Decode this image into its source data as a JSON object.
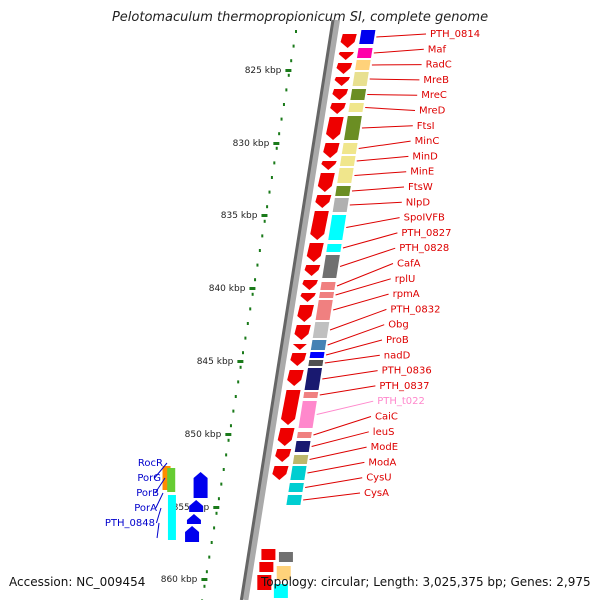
{
  "title": "Pelotomaculum thermopropionicum SI, complete genome",
  "accession": "Accession: NC_009454",
  "topology": "Topology: circular; Length: 3,025,375 bp; Genes: 2,975",
  "scale_labels": [
    "825 kbp",
    "830 kbp",
    "835 kbp",
    "840 kbp",
    "845 kbp",
    "850 kbp",
    "855 kbp",
    "860 kbp"
  ],
  "genes_red": [
    {
      "label": "PTH_0814",
      "color": "#0000ee"
    },
    {
      "label": "Maf",
      "color": "#ff00aa"
    },
    {
      "label": "RadC",
      "color": "#ffd27a"
    },
    {
      "label": "MreB",
      "color": "#e8e090"
    },
    {
      "label": "MreC",
      "color": "#6b8e23"
    },
    {
      "label": "MreD",
      "color": "#f0e68c"
    },
    {
      "label": "FtsI",
      "color": "#6b8e23"
    },
    {
      "label": "MinC",
      "color": "#f0e68c"
    },
    {
      "label": "MinD",
      "color": "#f0e68c"
    },
    {
      "label": "MinE",
      "color": "#f0e68c"
    },
    {
      "label": "FtsW",
      "color": "#6b8e23"
    },
    {
      "label": "NlpD",
      "color": "#b0b0b0"
    },
    {
      "label": "SpoIVFB",
      "color": "#00ffff"
    },
    {
      "label": "PTH_0827",
      "color": "#00ffff"
    },
    {
      "label": "PTH_0828",
      "color": "#707070"
    },
    {
      "label": "CafA",
      "color": "#f08080"
    },
    {
      "label": "rplU",
      "color": "#f08080"
    },
    {
      "label": "rpmA",
      "color": "#f08080"
    },
    {
      "label": "PTH_0832",
      "color": "#c0c0c0"
    },
    {
      "label": "Obg",
      "color": "#4682b4"
    },
    {
      "label": "ProB",
      "color": "#0000ff"
    },
    {
      "label": "nadD",
      "color": "#505050"
    },
    {
      "label": "PTH_0836",
      "color": "#191970"
    },
    {
      "label": "PTH_0837",
      "color": "#f08080"
    },
    {
      "label": "PTH_t022",
      "color": "#ff88cc"
    },
    {
      "label": "CaiC",
      "color": "#f08080"
    },
    {
      "label": "leuS",
      "color": "#191970"
    },
    {
      "label": "ModE",
      "color": "#bdb76b"
    },
    {
      "label": "ModA",
      "color": "#00ced1"
    },
    {
      "label": "CysU",
      "color": "#00ced1"
    },
    {
      "label": "CysA",
      "color": "#00ced1"
    }
  ],
  "genes_blue": [
    {
      "label": "RocR",
      "color": "#ff8c00"
    },
    {
      "label": "PorG",
      "color": "#00ffff"
    },
    {
      "label": "PorB",
      "color": "#00ffff"
    },
    {
      "label": "PorA",
      "color": "#00ffff"
    },
    {
      "label": "PTH_0848",
      "color": "#00ffff"
    }
  ],
  "label_color_red": "#dd0000",
  "label_color_blue": "#0000cc",
  "label_color_trna": "#ff88cc"
}
